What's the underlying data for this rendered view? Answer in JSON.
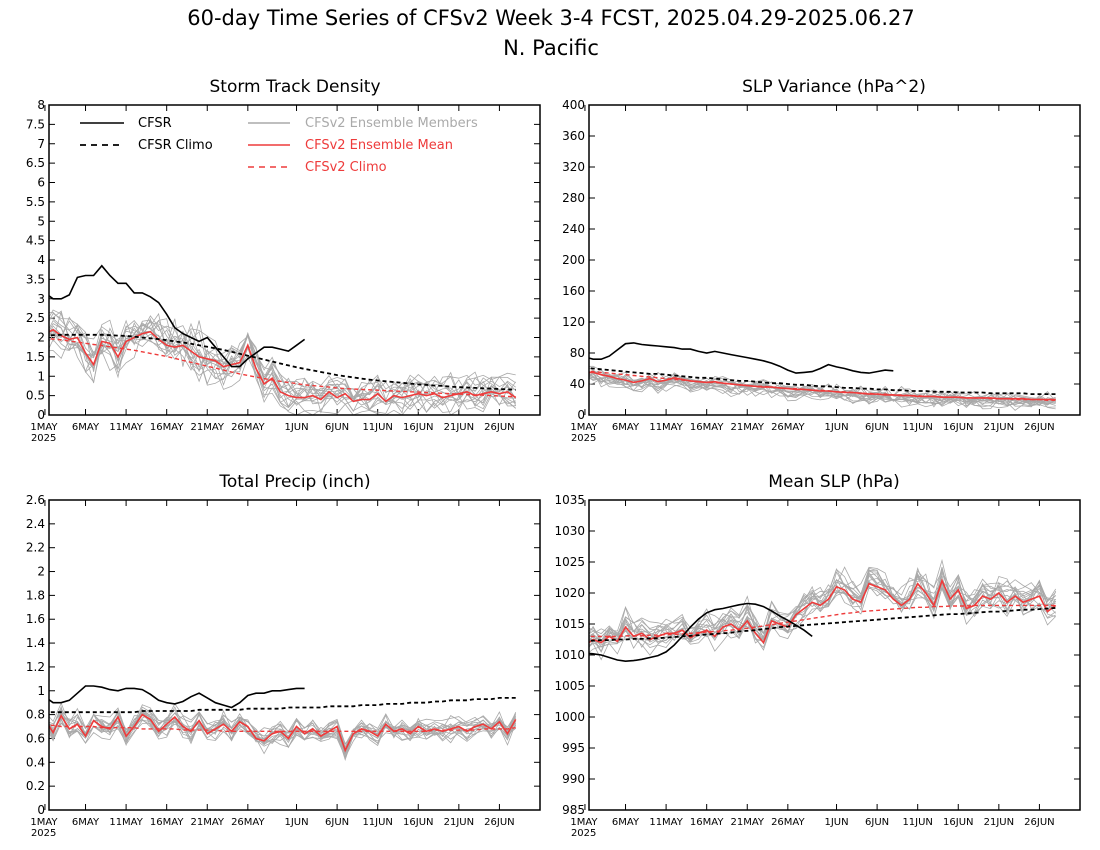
{
  "figure": {
    "title_line1": "60-day Time Series of CFSv2 Week 3-4 FCST, 2025.04.29-2025.06.27",
    "title_line2": "N. Pacific"
  },
  "colors": {
    "cfsr": "#000000",
    "cfsr_climo": "#000000",
    "members": "#a9a9a9",
    "ens_mean": "#ee3b3b",
    "cfsv2_climo": "#ee3b3b",
    "member_legend_text": "#aaaaaa",
    "red_legend_text": "#ee3b3b"
  },
  "legend": [
    {
      "label": "CFSR",
      "style": "solid",
      "color": "#000000"
    },
    {
      "label": "CFSR Climo",
      "style": "dashed",
      "color": "#000000"
    },
    {
      "label": "CFSv2 Ensemble Members",
      "style": "solid",
      "color": "#aaaaaa"
    },
    {
      "label": "CFSv2 Ensemble Mean",
      "style": "solid",
      "color": "#ee3b3b"
    },
    {
      "label": "CFSv2 Climo",
      "style": "dashed",
      "color": "#ee3b3b"
    }
  ],
  "x_axis": {
    "start": "2025-04-29",
    "end": "2025-06-27",
    "tick_labels": [
      "1MAY",
      "6MAY",
      "11MAY",
      "16MAY",
      "21MAY",
      "26MAY",
      "1JUN",
      "6JUN",
      "11JUN",
      "16JUN",
      "21JUN",
      "26JUN"
    ],
    "tick_days": [
      2,
      7,
      12,
      17,
      22,
      27,
      33,
      38,
      43,
      48,
      53,
      58
    ],
    "year_label": "2025"
  },
  "chart_data": [
    {
      "type": "line",
      "title": "Storm Track Density",
      "ylim": [
        0,
        8
      ],
      "yticks": [
        "0",
        "0.5",
        "1",
        "1.5",
        "2",
        "2.5",
        "3",
        "3.5",
        "4",
        "4.5",
        "5",
        "5.5",
        "6",
        "6.5",
        "7",
        "7.5",
        "8"
      ],
      "x_start": "2025-04-29",
      "series": [
        {
          "name": "CFSR",
          "values": [
            2.8,
            3.15,
            3.0,
            3.0,
            3.1,
            3.55,
            3.6,
            3.6,
            3.85,
            3.6,
            3.4,
            3.4,
            3.15,
            3.15,
            3.05,
            2.9,
            2.6,
            2.25,
            2.1,
            2.0,
            1.9,
            2.0,
            1.75,
            1.5,
            1.25,
            1.25,
            1.45,
            1.6,
            1.75,
            1.75,
            1.7,
            1.65,
            1.8,
            1.95
          ]
        },
        {
          "name": "CFSR Climo",
          "values": [
            2.05,
            2.06,
            2.06,
            2.07,
            2.07,
            2.07,
            2.07,
            2.07,
            2.07,
            2.06,
            2.05,
            2.04,
            2.02,
            2.0,
            1.98,
            1.96,
            1.93,
            1.9,
            1.87,
            1.84,
            1.8,
            1.76,
            1.72,
            1.68,
            1.63,
            1.58,
            1.53,
            1.48,
            1.43,
            1.38,
            1.33,
            1.28,
            1.23,
            1.19,
            1.15,
            1.11,
            1.07,
            1.03,
            1.0,
            0.97,
            0.94,
            0.91,
            0.89,
            0.87,
            0.85,
            0.83,
            0.81,
            0.79,
            0.78,
            0.76,
            0.75,
            0.73,
            0.72,
            0.71,
            0.7,
            0.69,
            0.68,
            0.67,
            0.66,
            0.65
          ]
        },
        {
          "name": "CFSv2 Ensemble Mean",
          "values": [
            2.05,
            2.1,
            2.2,
            2.05,
            1.95,
            2.0,
            1.6,
            1.3,
            1.9,
            1.85,
            1.5,
            1.9,
            2.0,
            2.1,
            2.15,
            1.95,
            1.8,
            1.75,
            1.8,
            1.65,
            1.5,
            1.45,
            1.4,
            1.25,
            1.3,
            1.35,
            1.8,
            1.2,
            0.8,
            0.95,
            0.6,
            0.5,
            0.45,
            0.45,
            0.5,
            0.4,
            0.6,
            0.45,
            0.55,
            0.35,
            0.4,
            0.4,
            0.55,
            0.35,
            0.5,
            0.45,
            0.5,
            0.55,
            0.5,
            0.55,
            0.45,
            0.5,
            0.55,
            0.6,
            0.5,
            0.55,
            0.6,
            0.55,
            0.6,
            0.45
          ]
        },
        {
          "name": "CFSv2 Climo",
          "values": [
            2.0,
            1.98,
            1.96,
            1.94,
            1.91,
            1.88,
            1.85,
            1.82,
            1.79,
            1.76,
            1.73,
            1.7,
            1.67,
            1.63,
            1.59,
            1.55,
            1.51,
            1.46,
            1.41,
            1.36,
            1.31,
            1.26,
            1.21,
            1.16,
            1.11,
            1.06,
            1.02,
            0.98,
            0.94,
            0.9,
            0.87,
            0.84,
            0.81,
            0.78,
            0.76,
            0.74,
            0.72,
            0.7,
            0.68,
            0.67,
            0.66,
            0.65,
            0.64,
            0.63,
            0.62,
            0.61,
            0.6,
            0.59,
            0.58,
            0.57,
            0.56,
            0.55,
            0.54,
            0.53,
            0.52,
            0.51,
            0.5,
            0.49,
            0.48,
            0.47
          ]
        }
      ]
    },
    {
      "type": "line",
      "title": "SLP Variance (hPa^2)",
      "ylim": [
        0,
        400
      ],
      "yticks": [
        "0",
        "40",
        "80",
        "120",
        "160",
        "200",
        "240",
        "280",
        "320",
        "360",
        "400"
      ],
      "x_start": "2025-04-29",
      "series": [
        {
          "name": "CFSR",
          "values": [
            80,
            75,
            72,
            72,
            76,
            84,
            92,
            93,
            91,
            90,
            89,
            88,
            87,
            85,
            85,
            82,
            80,
            82,
            80,
            78,
            76,
            74,
            72,
            70,
            67,
            63,
            58,
            54,
            55,
            56,
            60,
            65,
            62,
            60,
            57,
            55,
            54,
            56,
            58,
            57
          ]
        },
        {
          "name": "CFSR Climo",
          "values": [
            62,
            61,
            60,
            59,
            58,
            57,
            56,
            55,
            54,
            53,
            53,
            52,
            51,
            50,
            49,
            48,
            48,
            47,
            46,
            45,
            44,
            44,
            43,
            42,
            41,
            41,
            40,
            39,
            39,
            38,
            37,
            37,
            36,
            35,
            35,
            34,
            34,
            33,
            33,
            32,
            32,
            31,
            31,
            31,
            30,
            30,
            30,
            29,
            29,
            29,
            29,
            28,
            28,
            28,
            28,
            28,
            27,
            27,
            27,
            27
          ]
        },
        {
          "name": "CFSv2 Ensemble Mean",
          "values": [
            57,
            55,
            55,
            52,
            50,
            47,
            45,
            42,
            44,
            47,
            43,
            45,
            48,
            46,
            44,
            43,
            42,
            43,
            41,
            40,
            39,
            38,
            37,
            36,
            36,
            35,
            34,
            33,
            33,
            32,
            31,
            31,
            30,
            29,
            29,
            28,
            27,
            27,
            26,
            26,
            25,
            25,
            24,
            24,
            24,
            23,
            23,
            23,
            22,
            22,
            22,
            22,
            21,
            21,
            21,
            21,
            20,
            20,
            20,
            20
          ]
        },
        {
          "name": "CFSv2 Climo",
          "values": [
            58,
            57,
            56,
            55,
            54,
            53,
            52,
            51,
            50,
            49,
            48,
            47,
            46,
            45,
            44,
            43,
            42,
            42,
            41,
            40,
            39,
            38,
            37,
            37,
            36,
            35,
            34,
            34,
            33,
            32,
            32,
            31,
            30,
            30,
            29,
            28,
            28,
            27,
            27,
            26,
            26,
            25,
            25,
            24,
            24,
            23,
            23,
            23,
            22,
            22,
            22,
            21,
            21,
            21,
            20,
            20,
            20,
            20,
            19,
            19
          ]
        }
      ]
    },
    {
      "type": "line",
      "title": "Total Precip (inch)",
      "ylim": [
        0,
        2.6
      ],
      "yticks": [
        "0",
        "0.2",
        "0.4",
        "0.6",
        "0.8",
        "1",
        "1.2",
        "1.4",
        "1.6",
        "1.8",
        "2",
        "2.2",
        "2.4",
        "2.6"
      ],
      "x_start": "2025-04-29",
      "series": [
        {
          "name": "CFSR",
          "values": [
            1.0,
            0.95,
            0.9,
            0.9,
            0.92,
            0.98,
            1.04,
            1.04,
            1.03,
            1.01,
            1.0,
            1.02,
            1.02,
            1.01,
            0.97,
            0.92,
            0.9,
            0.89,
            0.91,
            0.95,
            0.98,
            0.94,
            0.9,
            0.88,
            0.86,
            0.9,
            0.96,
            0.98,
            0.98,
            1.0,
            1.0,
            1.01,
            1.02,
            1.02
          ]
        },
        {
          "name": "CFSR Climo",
          "values": [
            0.82,
            0.82,
            0.82,
            0.82,
            0.82,
            0.82,
            0.82,
            0.82,
            0.82,
            0.82,
            0.82,
            0.82,
            0.82,
            0.83,
            0.83,
            0.83,
            0.83,
            0.83,
            0.83,
            0.83,
            0.84,
            0.84,
            0.84,
            0.84,
            0.84,
            0.84,
            0.85,
            0.85,
            0.85,
            0.85,
            0.85,
            0.86,
            0.86,
            0.86,
            0.86,
            0.86,
            0.87,
            0.87,
            0.87,
            0.87,
            0.88,
            0.88,
            0.88,
            0.89,
            0.89,
            0.89,
            0.9,
            0.9,
            0.9,
            0.91,
            0.91,
            0.92,
            0.92,
            0.92,
            0.93,
            0.93,
            0.93,
            0.94,
            0.94,
            0.94
          ]
        },
        {
          "name": "CFSv2 Ensemble Mean",
          "values": [
            0.72,
            0.76,
            0.65,
            0.79,
            0.68,
            0.72,
            0.62,
            0.75,
            0.7,
            0.68,
            0.78,
            0.62,
            0.7,
            0.8,
            0.76,
            0.66,
            0.72,
            0.78,
            0.7,
            0.66,
            0.75,
            0.64,
            0.68,
            0.72,
            0.66,
            0.74,
            0.7,
            0.6,
            0.58,
            0.64,
            0.66,
            0.6,
            0.7,
            0.64,
            0.68,
            0.62,
            0.66,
            0.7,
            0.5,
            0.64,
            0.68,
            0.66,
            0.62,
            0.72,
            0.66,
            0.68,
            0.64,
            0.7,
            0.66,
            0.68,
            0.66,
            0.68,
            0.7,
            0.66,
            0.7,
            0.72,
            0.68,
            0.74,
            0.64,
            0.76
          ]
        },
        {
          "name": "CFSv2 Climo",
          "values": [
            0.71,
            0.71,
            0.71,
            0.7,
            0.7,
            0.7,
            0.7,
            0.7,
            0.69,
            0.69,
            0.69,
            0.69,
            0.69,
            0.68,
            0.68,
            0.68,
            0.68,
            0.68,
            0.67,
            0.67,
            0.67,
            0.67,
            0.67,
            0.66,
            0.66,
            0.66,
            0.66,
            0.66,
            0.66,
            0.66,
            0.66,
            0.66,
            0.66,
            0.66,
            0.66,
            0.66,
            0.66,
            0.66,
            0.66,
            0.66,
            0.66,
            0.66,
            0.66,
            0.66,
            0.66,
            0.66,
            0.66,
            0.66,
            0.66,
            0.67,
            0.67,
            0.67,
            0.67,
            0.67,
            0.67,
            0.68,
            0.68,
            0.68,
            0.68,
            0.69
          ]
        }
      ]
    },
    {
      "type": "line",
      "title": "Mean SLP (hPa)",
      "ylim": [
        985,
        1035
      ],
      "yticks": [
        "985",
        "990",
        "995",
        "1000",
        "1005",
        "1010",
        "1015",
        "1020",
        "1025",
        "1030",
        "1035"
      ],
      "x_start": "2025-04-29",
      "series": [
        {
          "name": "CFSR",
          "values": [
            1010.0,
            1010.3,
            1010.2,
            1010.0,
            1009.6,
            1009.2,
            1009.0,
            1009.1,
            1009.3,
            1009.6,
            1009.9,
            1010.5,
            1011.6,
            1013.0,
            1014.5,
            1015.8,
            1016.8,
            1017.3,
            1017.5,
            1017.8,
            1018.1,
            1018.3,
            1018.2,
            1017.8,
            1017.1,
            1016.3,
            1015.6,
            1014.8,
            1014.0,
            1013.0
          ]
        },
        {
          "name": "CFSR Climo",
          "values": [
            1012.2,
            1012.3,
            1012.3,
            1012.4,
            1012.4,
            1012.5,
            1012.5,
            1012.6,
            1012.6,
            1012.7,
            1012.7,
            1012.8,
            1012.9,
            1013.0,
            1013.1,
            1013.2,
            1013.3,
            1013.4,
            1013.5,
            1013.6,
            1013.8,
            1013.9,
            1014.0,
            1014.2,
            1014.3,
            1014.5,
            1014.6,
            1014.7,
            1014.8,
            1014.9,
            1015.0,
            1015.1,
            1015.2,
            1015.3,
            1015.4,
            1015.5,
            1015.6,
            1015.7,
            1015.8,
            1015.9,
            1016.0,
            1016.1,
            1016.2,
            1016.3,
            1016.4,
            1016.5,
            1016.6,
            1016.6,
            1016.7,
            1016.8,
            1016.9,
            1017.0,
            1017.0,
            1017.1,
            1017.2,
            1017.3,
            1017.3,
            1017.4,
            1017.5,
            1017.6
          ]
        },
        {
          "name": "CFSv2 Ensemble Mean",
          "values": [
            1011.0,
            1011.5,
            1012.5,
            1012.0,
            1013.0,
            1012.2,
            1014.5,
            1013.0,
            1013.5,
            1012.5,
            1013.0,
            1013.5,
            1013.5,
            1014.0,
            1012.8,
            1013.5,
            1014.0,
            1013.0,
            1014.5,
            1015.0,
            1014.0,
            1015.5,
            1013.5,
            1012.0,
            1015.5,
            1015.0,
            1014.5,
            1016.5,
            1017.5,
            1018.5,
            1018.0,
            1019.0,
            1021.0,
            1020.5,
            1019.0,
            1018.5,
            1021.5,
            1021.0,
            1020.5,
            1019.0,
            1018.0,
            1019.0,
            1021.5,
            1020.0,
            1018.0,
            1022.0,
            1019.0,
            1020.5,
            1017.5,
            1018.0,
            1019.5,
            1019.0,
            1020.0,
            1018.5,
            1019.5,
            1018.5,
            1019.0,
            1019.5,
            1017.0,
            1018.0
          ]
        },
        {
          "name": "CFSv2 Climo",
          "values": [
            1013.0,
            1013.0,
            1013.0,
            1013.0,
            1013.0,
            1013.0,
            1013.1,
            1013.1,
            1013.1,
            1013.2,
            1013.2,
            1013.3,
            1013.3,
            1013.4,
            1013.5,
            1013.6,
            1013.7,
            1013.8,
            1013.9,
            1014.0,
            1014.2,
            1014.3,
            1014.5,
            1014.7,
            1014.9,
            1015.1,
            1015.3,
            1015.5,
            1015.7,
            1015.9,
            1016.1,
            1016.3,
            1016.5,
            1016.7,
            1016.8,
            1017.0,
            1017.1,
            1017.2,
            1017.3,
            1017.4,
            1017.5,
            1017.6,
            1017.7,
            1017.7,
            1017.8,
            1017.8,
            1017.9,
            1017.9,
            1017.9,
            1018.0,
            1018.0,
            1018.0,
            1018.0,
            1018.0,
            1018.0,
            1018.0,
            1018.0,
            1018.0,
            1018.0,
            1018.0
          ]
        }
      ]
    }
  ]
}
